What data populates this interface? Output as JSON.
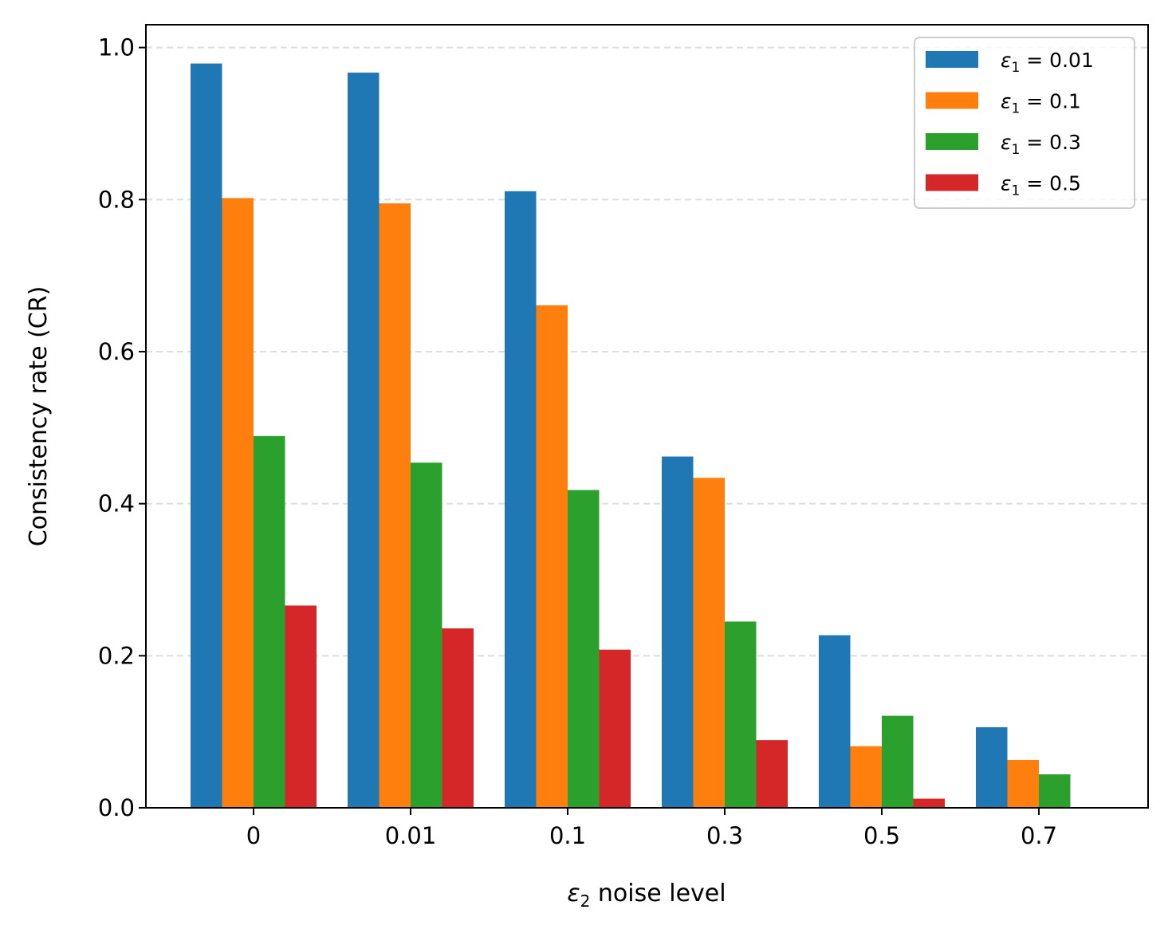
{
  "chart_data": {
    "type": "bar",
    "categories": [
      "0",
      "0.01",
      "0.1",
      "0.3",
      "0.5",
      "0.7"
    ],
    "series": [
      {
        "name_var": "ε",
        "name_sub": "1",
        "name_rest": " = 0.01",
        "color": "#1f77b4",
        "values": [
          0.979,
          0.967,
          0.811,
          0.462,
          0.227,
          0.106
        ]
      },
      {
        "name_var": "ε",
        "name_sub": "1",
        "name_rest": " = 0.1",
        "color": "#ff7f0e",
        "values": [
          0.802,
          0.795,
          0.661,
          0.434,
          0.081,
          0.063
        ]
      },
      {
        "name_var": "ε",
        "name_sub": "1",
        "name_rest": " = 0.3",
        "color": "#2ca02c",
        "values": [
          0.489,
          0.454,
          0.418,
          0.245,
          0.121,
          0.044
        ]
      },
      {
        "name_var": "ε",
        "name_sub": "1",
        "name_rest": " = 0.5",
        "color": "#d62728",
        "values": [
          0.266,
          0.236,
          0.208,
          0.089,
          0.012,
          0.0
        ]
      }
    ],
    "xlabel_var": "ε",
    "xlabel_sub": "2",
    "xlabel_rest": " noise level",
    "ylabel": "Consistency rate (CR)",
    "ylim": [
      0,
      1.03
    ],
    "yticks": [
      "0.0",
      "0.2",
      "0.4",
      "0.6",
      "0.8",
      "1.0"
    ],
    "grid": "y",
    "legend_position": "top-right"
  }
}
